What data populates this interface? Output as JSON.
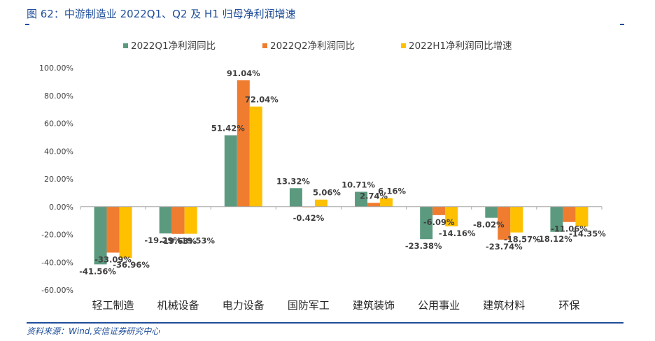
{
  "header": {
    "figure_title": "图 62：中游制造业 2022Q1、Q2 及 H1 归母净利润增速"
  },
  "footer": {
    "source": "资料来源：Wind,安信证券研究中心"
  },
  "chart_data": {
    "type": "bar",
    "title": "",
    "xlabel": "",
    "ylabel": "",
    "categories": [
      "轻工制造",
      "机械设备",
      "电力设备",
      "国防军工",
      "建筑装饰",
      "公用事业",
      "建筑材料",
      "环保"
    ],
    "series": [
      {
        "name": "2022Q1净利润同比",
        "color": "#5b9a7f",
        "values": [
          -41.56,
          -19.29,
          51.42,
          13.32,
          10.71,
          -23.38,
          -8.02,
          -18.12
        ],
        "labels": [
          "-41.56%",
          "-19.29%",
          "51.42%",
          "13.32%",
          "10.71%",
          "-23.38%",
          "-8.02%",
          "-18.12%"
        ]
      },
      {
        "name": "2022Q2净利润同比",
        "color": "#f07d2f",
        "values": [
          -33.09,
          -19.63,
          91.04,
          -0.42,
          2.74,
          -6.09,
          -23.74,
          -11.06
        ],
        "labels": [
          "-33.09%",
          "-19.63%",
          "91.04%",
          "-0.42%",
          "2.74%",
          "-6.09%",
          "-23.74%",
          "-11.06%"
        ]
      },
      {
        "name": "2022H1净利润同比增速",
        "color": "#ffc000",
        "values": [
          -36.96,
          -19.53,
          72.04,
          5.06,
          6.16,
          -14.16,
          -18.57,
          -14.35
        ],
        "labels": [
          "-36.96%",
          "-19.53%",
          "72.04%",
          "5.06%",
          "6.16%",
          "-14.16%",
          "-18.57%",
          "-14.35%"
        ]
      }
    ],
    "y_ticks": [
      "-60.00%",
      "-40.00%",
      "-20.00%",
      "0.00%",
      "20.00%",
      "40.00%",
      "60.00%",
      "80.00%",
      "100.00%"
    ],
    "ylim": [
      -60,
      100
    ],
    "grid": false,
    "legend_position": "top"
  }
}
